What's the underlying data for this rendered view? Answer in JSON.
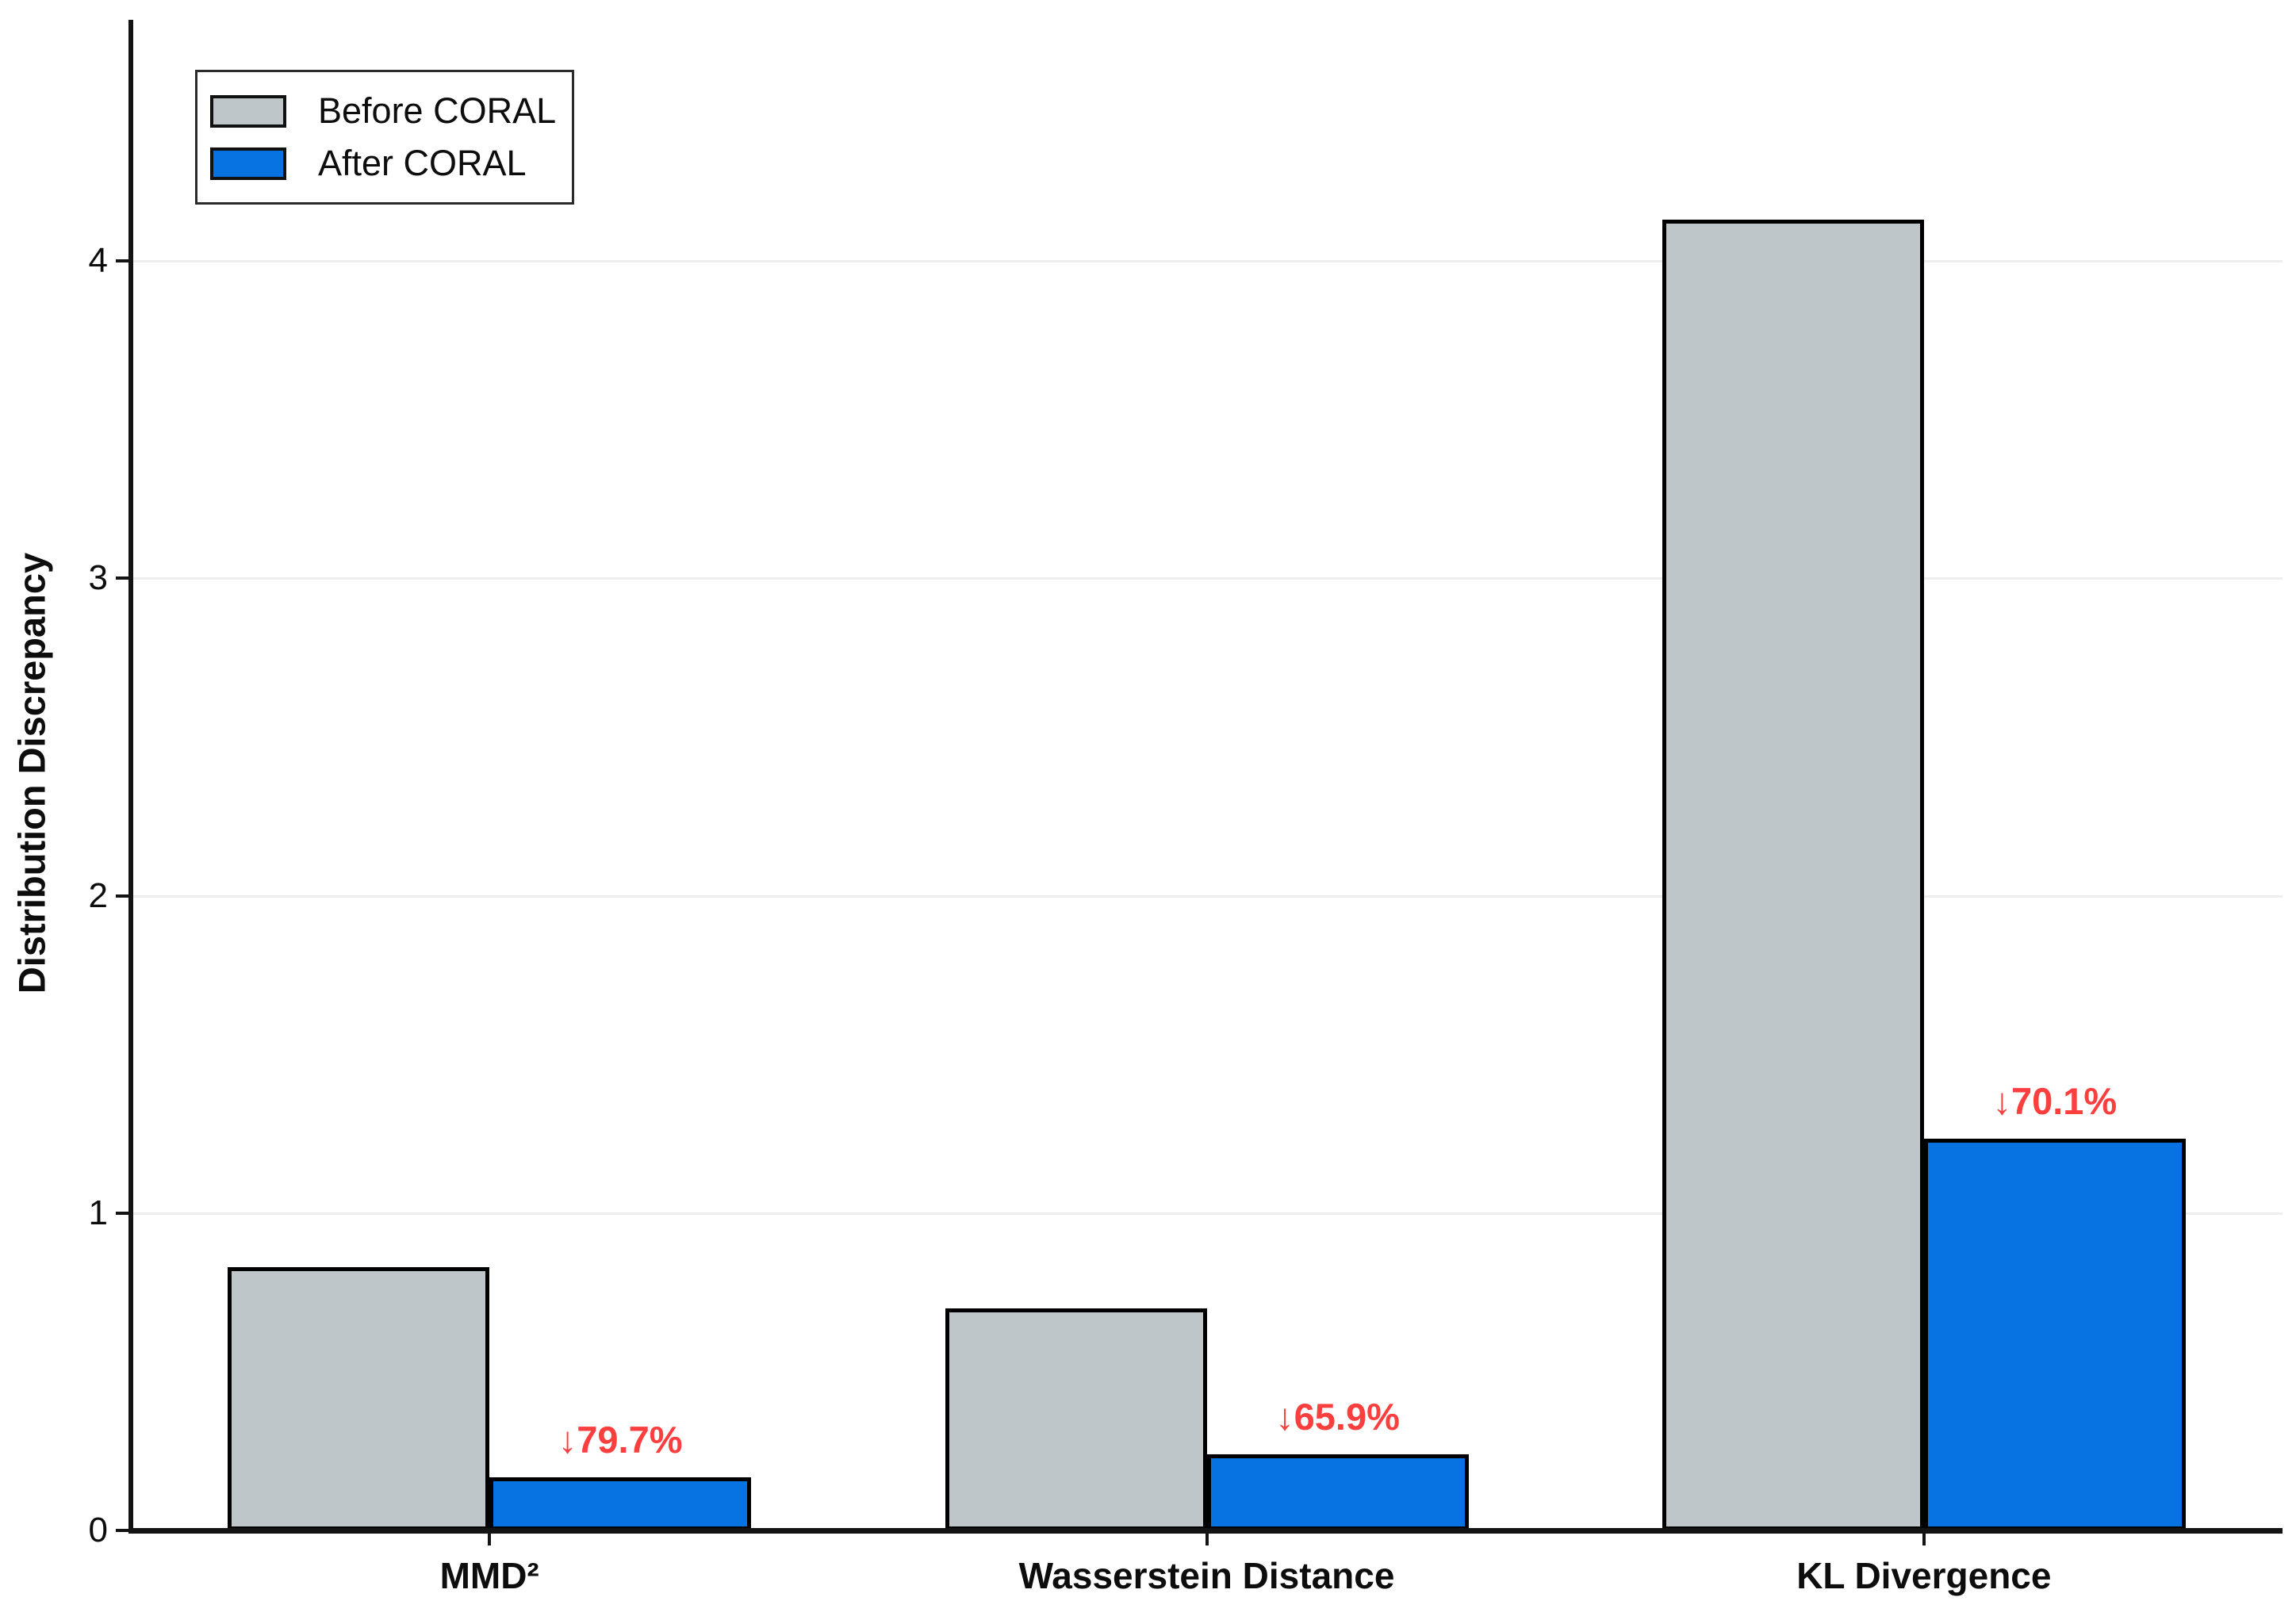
{
  "chart_data": {
    "type": "bar",
    "title": "",
    "xlabel": "",
    "ylabel": "Distribution Discrepancy",
    "categories": [
      "MMD²",
      "Wasserstein Distance",
      "KL Divergence"
    ],
    "series": [
      {
        "name": "Before CORAL",
        "values": [
          0.83,
          0.7,
          4.13
        ],
        "color": "#bfc6ca"
      },
      {
        "name": "After CORAL",
        "values": [
          0.168,
          0.239,
          1.235
        ],
        "color": "#0773e3"
      }
    ],
    "annotations": [
      {
        "text": "↓79.7%",
        "category_index": 0
      },
      {
        "text": "↓65.9%",
        "category_index": 1
      },
      {
        "text": "↓70.1%",
        "category_index": 2
      }
    ],
    "annotation_color": "#fb3e3e",
    "yticks": [
      "0",
      "1",
      "2",
      "3",
      "4"
    ],
    "ylim": [
      0,
      4.76
    ],
    "grid": "horizontal",
    "legend_position": "upper-left",
    "bar_edge_color": "#000000",
    "axis_color": "#141414",
    "grid_color": "#eeeeee"
  }
}
